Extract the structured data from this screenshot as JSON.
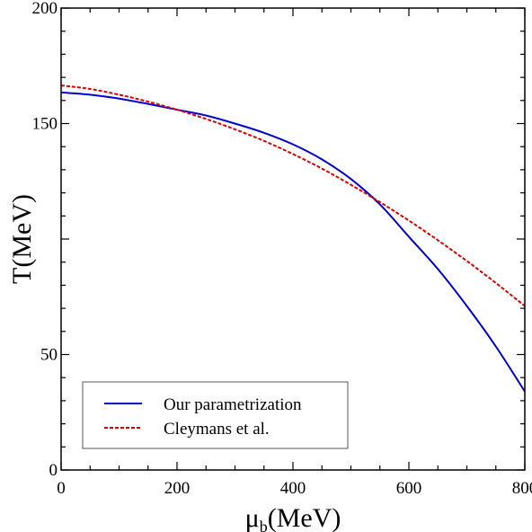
{
  "chart_data": {
    "type": "line",
    "xlabel": "μb(MeV)",
    "xlabel_parts": {
      "main": "μ",
      "sub": "b",
      "unit": "(MeV)"
    },
    "ylabel": "T(MeV)",
    "xlim": [
      0,
      800
    ],
    "ylim": [
      0,
      200
    ],
    "x_ticks": [
      0,
      200,
      400,
      600,
      800
    ],
    "y_ticks": [
      0,
      50,
      150,
      200
    ],
    "x_tick_labels": [
      "0",
      "200",
      "400",
      "600",
      "800"
    ],
    "y_tick_labels": [
      "0",
      "50",
      "150",
      "200"
    ],
    "legend_position": "bottom-left",
    "series": [
      {
        "name": "Our parametrization",
        "color": "#0000cc",
        "line_style": "solid",
        "x": [
          0,
          50,
          100,
          150,
          200,
          250,
          300,
          350,
          400,
          450,
          500,
          550,
          600,
          650,
          700,
          750,
          800
        ],
        "y": [
          163.5,
          162.5,
          160.8,
          158.5,
          156,
          153.5,
          150,
          146,
          141,
          134.5,
          126,
          115,
          101,
          87,
          71,
          53.5,
          34
        ]
      },
      {
        "name": "Cleymans et al.",
        "color": "#dd0000",
        "line_style": "dashed",
        "x": [
          0,
          50,
          100,
          150,
          200,
          250,
          300,
          350,
          400,
          450,
          500,
          550,
          600,
          650,
          700,
          750,
          800
        ],
        "y": [
          166.5,
          165,
          162.5,
          159.5,
          156,
          152,
          147.5,
          142.5,
          136.8,
          130.5,
          123.5,
          116,
          108,
          99.5,
          90.5,
          81,
          71
        ]
      }
    ]
  }
}
